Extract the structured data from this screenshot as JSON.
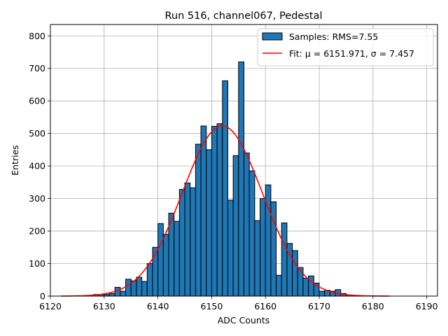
{
  "chart_data": {
    "type": "bar",
    "title": "Run 516, channel067, Pedestal",
    "xlabel": "ADC Counts",
    "ylabel": "Entries",
    "xlim": [
      6120,
      6192
    ],
    "ylim": [
      0,
      835
    ],
    "xticks": [
      6120,
      6130,
      6140,
      6150,
      6160,
      6170,
      6180,
      6190
    ],
    "yticks": [
      0,
      100,
      200,
      300,
      400,
      500,
      600,
      700,
      800
    ],
    "grid": true,
    "legend_position": "top-right",
    "bin_width": 1,
    "histogram": {
      "name": "Samples: RMS=7.55",
      "color": "#1f77b4",
      "edge_color": "#000000",
      "bin_starts": [
        6128,
        6129,
        6130,
        6131,
        6132,
        6133,
        6134,
        6135,
        6136,
        6137,
        6138,
        6139,
        6140,
        6141,
        6142,
        6143,
        6144,
        6145,
        6146,
        6147,
        6148,
        6149,
        6150,
        6151,
        6152,
        6153,
        6154,
        6155,
        6156,
        6157,
        6158,
        6159,
        6160,
        6161,
        6162,
        6163,
        6164,
        6165,
        6166,
        6167,
        6168,
        6169,
        6170,
        6171,
        6172,
        6173,
        6174,
        6175,
        6176
      ],
      "counts": [
        5,
        5,
        5,
        8,
        27,
        15,
        52,
        47,
        58,
        45,
        100,
        150,
        223,
        190,
        255,
        230,
        328,
        348,
        333,
        467,
        523,
        450,
        522,
        530,
        662,
        295,
        432,
        720,
        440,
        385,
        232,
        300,
        342,
        290,
        64,
        225,
        162,
        140,
        88,
        55,
        62,
        40,
        15,
        18,
        15,
        20,
        8,
        3,
        2
      ]
    },
    "fit": {
      "name": "Fit: μ = 6151.971, σ = 7.457",
      "color": "#ff0000",
      "mu": 6151.971,
      "sigma": 7.457,
      "amplitude": 523,
      "x_range": [
        6122,
        6183
      ]
    }
  }
}
